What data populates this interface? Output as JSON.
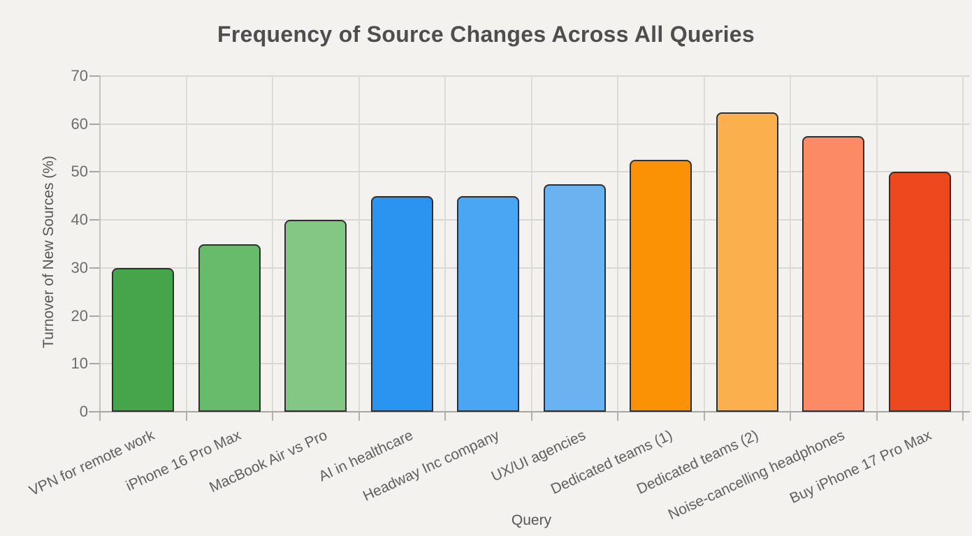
{
  "page": {
    "background_color": "#f4f2ef"
  },
  "chart_data": {
    "type": "bar",
    "title": "Frequency of Source Changes Across All Queries",
    "xlabel": "Query",
    "ylabel": "Turnover of New Sources (%)",
    "categories": [
      "VPN for remote work",
      "iPhone 16 Pro Max",
      "MacBook Air vs Pro",
      "AI in healthcare",
      "Headway Inc company",
      "UX/UI agencies",
      "Dedicated teams (1)",
      "Dedicated teams (2)",
      "Noise-cancelling headphones",
      "Buy iPhone 17 Pro Max"
    ],
    "values": [
      30,
      35,
      40,
      45,
      45,
      47.5,
      52.5,
      62.5,
      57.5,
      50
    ],
    "bar_colors": [
      "#46A44A",
      "#67BB6A",
      "#84C684",
      "#2B93F0",
      "#4AA5F3",
      "#6BB2F1",
      "#FB9104",
      "#FCB04D",
      "#FC8A64",
      "#EC4A1E"
    ],
    "bar_border_color": "#2f2f2f",
    "ylim": [
      0,
      70
    ],
    "yticks": [
      0,
      10,
      20,
      30,
      40,
      50,
      60,
      70
    ],
    "xtick_rotation_deg": 25,
    "grid": "horizontal and vertical gridlines, light gray",
    "legend": "none"
  }
}
